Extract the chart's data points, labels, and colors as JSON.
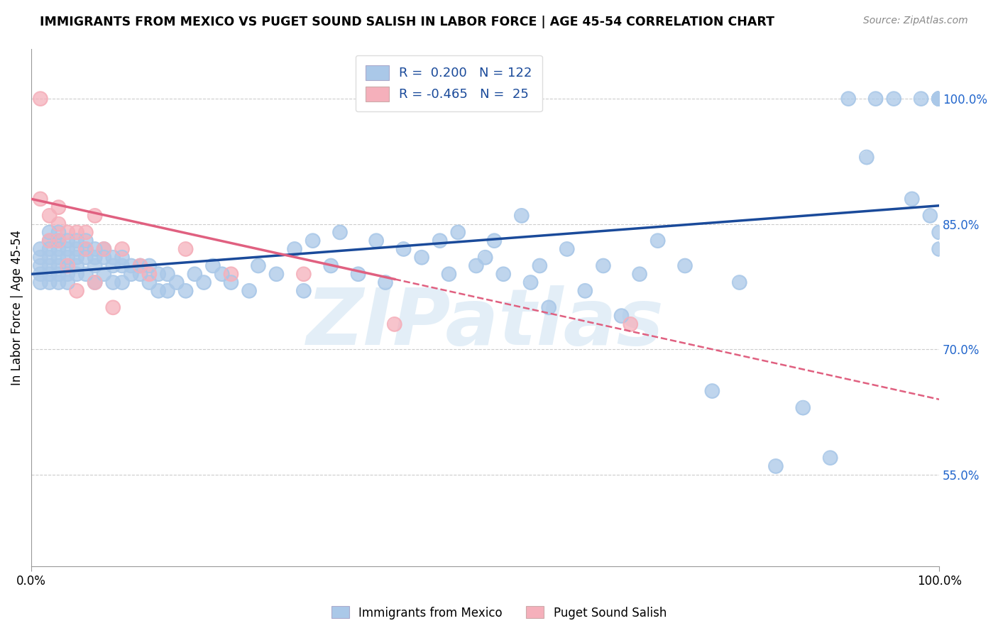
{
  "title": "IMMIGRANTS FROM MEXICO VS PUGET SOUND SALISH IN LABOR FORCE | AGE 45-54 CORRELATION CHART",
  "source": "Source: ZipAtlas.com",
  "xlabel_blue": "Immigrants from Mexico",
  "xlabel_pink": "Puget Sound Salish",
  "ylabel": "In Labor Force | Age 45-54",
  "blue_R": 0.2,
  "blue_N": 122,
  "pink_R": -0.465,
  "pink_N": 25,
  "xlim": [
    0.0,
    1.0
  ],
  "ylim": [
    0.44,
    1.06
  ],
  "yticks": [
    0.55,
    0.7,
    0.85,
    1.0
  ],
  "ytick_labels": [
    "55.0%",
    "70.0%",
    "85.0%",
    "100.0%"
  ],
  "xtick_labels": [
    "0.0%",
    "100.0%"
  ],
  "xticks": [
    0.0,
    1.0
  ],
  "blue_color": "#aac8e8",
  "pink_color": "#f5b0bb",
  "blue_line_color": "#1a4a9a",
  "pink_line_color": "#e06080",
  "background_color": "#ffffff",
  "grid_color": "#cccccc",
  "watermark": "ZIPatlas",
  "blue_line_x0": 0.0,
  "blue_line_y0": 0.79,
  "blue_line_x1": 1.0,
  "blue_line_y1": 0.872,
  "pink_line_x0": 0.0,
  "pink_line_y0": 0.88,
  "pink_line_x1_solid": 0.4,
  "pink_line_x1": 1.0,
  "pink_line_y1": 0.64,
  "blue_scatter_x": [
    0.01,
    0.01,
    0.01,
    0.01,
    0.01,
    0.02,
    0.02,
    0.02,
    0.02,
    0.02,
    0.02,
    0.02,
    0.03,
    0.03,
    0.03,
    0.03,
    0.03,
    0.03,
    0.03,
    0.04,
    0.04,
    0.04,
    0.04,
    0.04,
    0.04,
    0.05,
    0.05,
    0.05,
    0.05,
    0.05,
    0.06,
    0.06,
    0.06,
    0.06,
    0.07,
    0.07,
    0.07,
    0.07,
    0.08,
    0.08,
    0.08,
    0.09,
    0.09,
    0.09,
    0.1,
    0.1,
    0.1,
    0.11,
    0.11,
    0.12,
    0.12,
    0.13,
    0.13,
    0.14,
    0.14,
    0.15,
    0.15,
    0.16,
    0.17,
    0.18,
    0.19,
    0.2,
    0.21,
    0.22,
    0.24,
    0.25,
    0.27,
    0.29,
    0.3,
    0.31,
    0.33,
    0.34,
    0.36,
    0.38,
    0.39,
    0.41,
    0.43,
    0.45,
    0.46,
    0.47,
    0.49,
    0.5,
    0.51,
    0.52,
    0.54,
    0.55,
    0.56,
    0.57,
    0.59,
    0.61,
    0.63,
    0.65,
    0.67,
    0.69,
    0.72,
    0.75,
    0.78,
    0.82,
    0.85,
    0.88,
    0.9,
    0.92,
    0.93,
    0.95,
    0.97,
    0.98,
    0.99,
    1.0,
    1.0,
    1.0,
    1.0,
    1.0,
    1.0,
    1.0,
    1.0,
    1.0,
    1.0,
    1.0,
    1.0,
    1.0,
    1.0,
    1.0
  ],
  "blue_scatter_y": [
    0.82,
    0.81,
    0.8,
    0.79,
    0.78,
    0.84,
    0.83,
    0.82,
    0.81,
    0.8,
    0.79,
    0.78,
    0.84,
    0.83,
    0.82,
    0.81,
    0.8,
    0.79,
    0.78,
    0.83,
    0.82,
    0.81,
    0.8,
    0.79,
    0.78,
    0.83,
    0.82,
    0.81,
    0.8,
    0.79,
    0.83,
    0.82,
    0.81,
    0.79,
    0.82,
    0.81,
    0.8,
    0.78,
    0.82,
    0.81,
    0.79,
    0.81,
    0.8,
    0.78,
    0.81,
    0.8,
    0.78,
    0.8,
    0.79,
    0.8,
    0.79,
    0.8,
    0.78,
    0.79,
    0.77,
    0.79,
    0.77,
    0.78,
    0.77,
    0.79,
    0.78,
    0.8,
    0.79,
    0.78,
    0.77,
    0.8,
    0.79,
    0.82,
    0.77,
    0.83,
    0.8,
    0.84,
    0.79,
    0.83,
    0.78,
    0.82,
    0.81,
    0.83,
    0.79,
    0.84,
    0.8,
    0.81,
    0.83,
    0.79,
    0.86,
    0.78,
    0.8,
    0.75,
    0.82,
    0.77,
    0.8,
    0.74,
    0.79,
    0.83,
    0.8,
    0.65,
    0.78,
    0.56,
    0.63,
    0.57,
    1.0,
    0.93,
    1.0,
    1.0,
    0.88,
    1.0,
    0.86,
    1.0,
    1.0,
    1.0,
    1.0,
    1.0,
    1.0,
    1.0,
    1.0,
    0.82,
    1.0,
    0.84,
    1.0,
    1.0,
    1.0,
    1.0
  ],
  "pink_scatter_x": [
    0.01,
    0.01,
    0.02,
    0.02,
    0.03,
    0.03,
    0.03,
    0.04,
    0.04,
    0.05,
    0.05,
    0.06,
    0.06,
    0.07,
    0.07,
    0.08,
    0.09,
    0.1,
    0.12,
    0.13,
    0.17,
    0.22,
    0.3,
    0.4,
    0.66
  ],
  "pink_scatter_y": [
    1.0,
    0.88,
    0.86,
    0.83,
    0.87,
    0.85,
    0.83,
    0.84,
    0.8,
    0.84,
    0.77,
    0.84,
    0.82,
    0.86,
    0.78,
    0.82,
    0.75,
    0.82,
    0.8,
    0.79,
    0.82,
    0.79,
    0.79,
    0.73,
    0.73
  ]
}
